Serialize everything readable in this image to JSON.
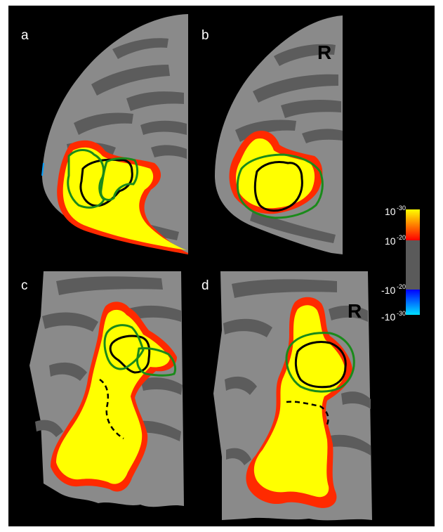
{
  "panels": {
    "a": {
      "label": "a"
    },
    "b": {
      "label": "b",
      "hemisphere": "R"
    },
    "c": {
      "label": "c"
    },
    "d": {
      "label": "d",
      "hemisphere": "R"
    }
  },
  "colorbar": {
    "labels": [
      {
        "base": "10",
        "exp": "-30"
      },
      {
        "base": "10",
        "exp": "-20"
      },
      {
        "base": "-10",
        "exp": "-20"
      },
      {
        "base": "-10",
        "exp": "-30"
      }
    ],
    "colors": {
      "positive_max": "#ffff00",
      "positive_min": "#ff0000",
      "neutral": "#5a5a5a",
      "negative_min": "#0000ff",
      "negative_max": "#00e0ff"
    }
  },
  "overlay_colors": {
    "cortex_light": "#8a8a8a",
    "cortex_dark": "#5c5c5c",
    "activation_yellow": "#ffff00",
    "activation_red": "#ff2a00",
    "roi_black": "#000000",
    "roi_green": "#1a8a1a"
  }
}
